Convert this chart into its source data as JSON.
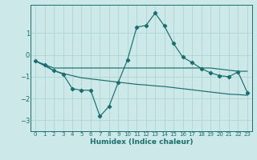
{
  "xlabel": "Humidex (Indice chaleur)",
  "ylabel": "",
  "background_color": "#cce8e8",
  "grid_color": "#afd4d4",
  "line_color": "#1a6e6e",
  "xlim": [
    -0.5,
    23.5
  ],
  "ylim": [
    -3.5,
    2.3
  ],
  "xticks": [
    0,
    1,
    2,
    3,
    4,
    5,
    6,
    7,
    8,
    9,
    10,
    11,
    12,
    13,
    14,
    15,
    16,
    17,
    18,
    19,
    20,
    21,
    22,
    23
  ],
  "yticks": [
    -3,
    -2,
    -1,
    0,
    1
  ],
  "line1_x": [
    0,
    1,
    2,
    3,
    4,
    5,
    6,
    7,
    8,
    9,
    10,
    11,
    12,
    13,
    14,
    15,
    16,
    17,
    18,
    19,
    20,
    21,
    22,
    23
  ],
  "line1_y": [
    -0.28,
    -0.45,
    -0.6,
    -0.6,
    -0.6,
    -0.6,
    -0.6,
    -0.6,
    -0.6,
    -0.6,
    -0.6,
    -0.6,
    -0.6,
    -0.6,
    -0.6,
    -0.6,
    -0.6,
    -0.6,
    -0.6,
    -0.6,
    -0.65,
    -0.7,
    -0.75,
    -0.75
  ],
  "line2_x": [
    0,
    1,
    2,
    3,
    4,
    5,
    6,
    7,
    8,
    9,
    10,
    11,
    12,
    13,
    14,
    15,
    16,
    17,
    18,
    19,
    20,
    21,
    22,
    23
  ],
  "line2_y": [
    -0.28,
    -0.5,
    -0.72,
    -0.85,
    -0.95,
    -1.05,
    -1.1,
    -1.15,
    -1.2,
    -1.25,
    -1.3,
    -1.35,
    -1.38,
    -1.42,
    -1.45,
    -1.5,
    -1.55,
    -1.6,
    -1.65,
    -1.7,
    -1.75,
    -1.8,
    -1.82,
    -1.85
  ],
  "line3_x": [
    0,
    1,
    2,
    3,
    4,
    5,
    6,
    7,
    8,
    9,
    10,
    11,
    12,
    13,
    14,
    15,
    16,
    17,
    18,
    19,
    20,
    21,
    22,
    23
  ],
  "line3_y": [
    -0.28,
    -0.45,
    -0.72,
    -0.88,
    -1.55,
    -1.62,
    -1.62,
    -2.82,
    -2.35,
    -1.25,
    -0.22,
    1.28,
    1.35,
    1.92,
    1.33,
    0.52,
    -0.1,
    -0.35,
    -0.62,
    -0.82,
    -0.95,
    -1.0,
    -0.78,
    -1.72
  ]
}
